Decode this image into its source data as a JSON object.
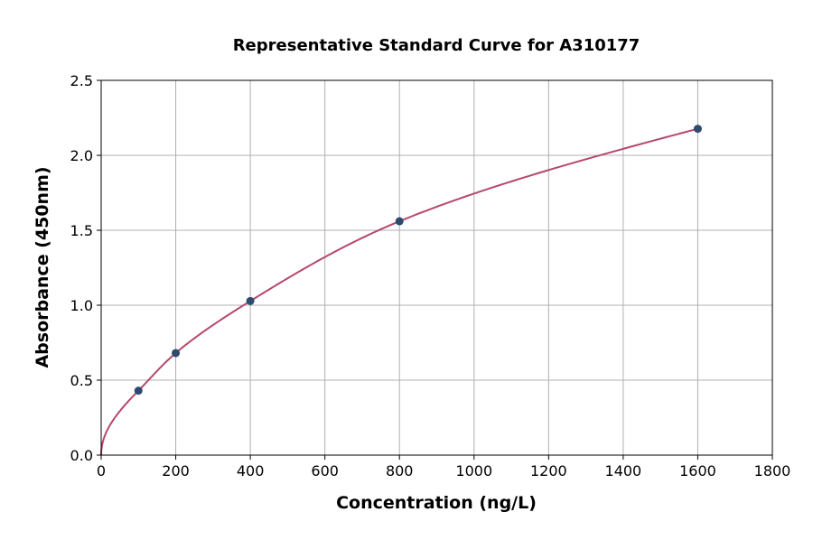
{
  "chart_data": {
    "type": "scatter",
    "title": "Representative Standard Curve for A310177",
    "xlabel": "Concentration (ng/L)",
    "ylabel": "Absorbance (450nm)",
    "xlim": [
      0,
      1800
    ],
    "ylim": [
      0,
      2.5
    ],
    "xticks": [
      "0",
      "200",
      "400",
      "600",
      "800",
      "1000",
      "1200",
      "1400",
      "1600",
      "1800"
    ],
    "yticks": [
      "0.0",
      "0.5",
      "1.0",
      "1.5",
      "2.0",
      "2.5"
    ],
    "grid": true,
    "series": [
      {
        "x": [
          100,
          200,
          400,
          800,
          1600
        ],
        "y": [
          0.43,
          0.681,
          1.028,
          1.56,
          2.177
        ],
        "marker_color": "#2e4a6e",
        "fit_line_color": "#b5486b"
      }
    ]
  }
}
